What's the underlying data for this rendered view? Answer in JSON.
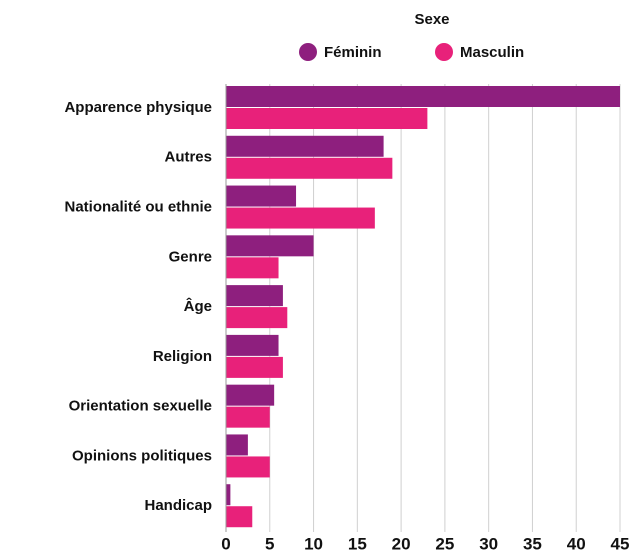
{
  "chart_data": {
    "type": "barh",
    "legend_title": "Sexe",
    "categories": [
      "Apparence physique",
      "Autres",
      "Nationalité ou ethnie",
      "Genre",
      "Âge",
      "Religion",
      "Orientation sexuelle",
      "Opinions politiques",
      "Handicap"
    ],
    "series": [
      {
        "name": "Féminin",
        "color": "#8e1f7e",
        "values": [
          45,
          18,
          8,
          10,
          6.5,
          6,
          5.5,
          2.5,
          0.5
        ]
      },
      {
        "name": "Masculin",
        "color": "#e8217a",
        "values": [
          23,
          19,
          17,
          6,
          7,
          6.5,
          5,
          5,
          3
        ]
      }
    ],
    "xlim": [
      0,
      45
    ],
    "xticks": [
      0,
      5,
      10,
      15,
      20,
      25,
      30,
      35,
      40,
      45
    ],
    "grid": true
  }
}
